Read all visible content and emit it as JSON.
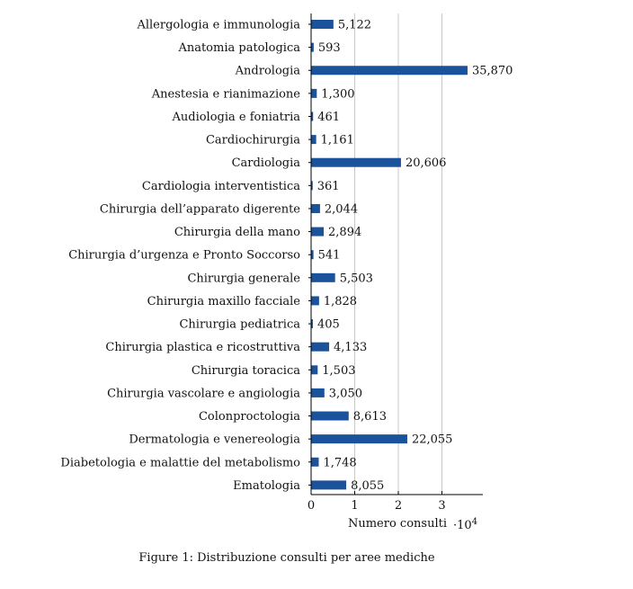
{
  "chart_data": {
    "type": "bar",
    "orientation": "horizontal",
    "categories": [
      "Allergologia e immunologia",
      "Anatomia patologica",
      "Andrologia",
      "Anestesia e rianimazione",
      "Audiologia e foniatria",
      "Cardiochirurgia",
      "Cardiologia",
      "Cardiologia interventistica",
      "Chirurgia dell’apparato digerente",
      "Chirurgia della mano",
      "Chirurgia d’urgenza e Pronto Soccorso",
      "Chirurgia generale",
      "Chirurgia maxillo facciale",
      "Chirurgia pediatrica",
      "Chirurgia plastica e ricostruttiva",
      "Chirurgia toracica",
      "Chirurgia vascolare e angiologia",
      "Colonproctologia",
      "Dermatologia e venereologia",
      "Diabetologia e malattie del metabolismo",
      "Ematologia"
    ],
    "values": [
      5122,
      593,
      35870,
      1300,
      461,
      1161,
      20606,
      361,
      2044,
      2894,
      541,
      5503,
      1828,
      405,
      4133,
      1503,
      3050,
      8613,
      22055,
      1748,
      8055
    ],
    "value_labels": [
      "5,122",
      "593",
      "35,870",
      "1,300",
      "461",
      "1,161",
      "20,606",
      "361",
      "2,044",
      "2,894",
      "541",
      "5,503",
      "1,828",
      "405",
      "4,133",
      "1,503",
      "3,050",
      "8,613",
      "22,055",
      "1,748",
      "8,055"
    ],
    "xlabel": "Numero consulti",
    "x_scale_label": "·10",
    "x_scale_exponent": "4",
    "xlim": [
      0,
      40000
    ],
    "x_ticks": [
      0,
      10000,
      20000,
      30000
    ],
    "x_tick_labels": [
      "0",
      "1",
      "2",
      "3"
    ],
    "grid": "vertical",
    "bar_color": "#1a539b"
  },
  "caption": "Figure 1: Distribuzione consulti per aree mediche"
}
